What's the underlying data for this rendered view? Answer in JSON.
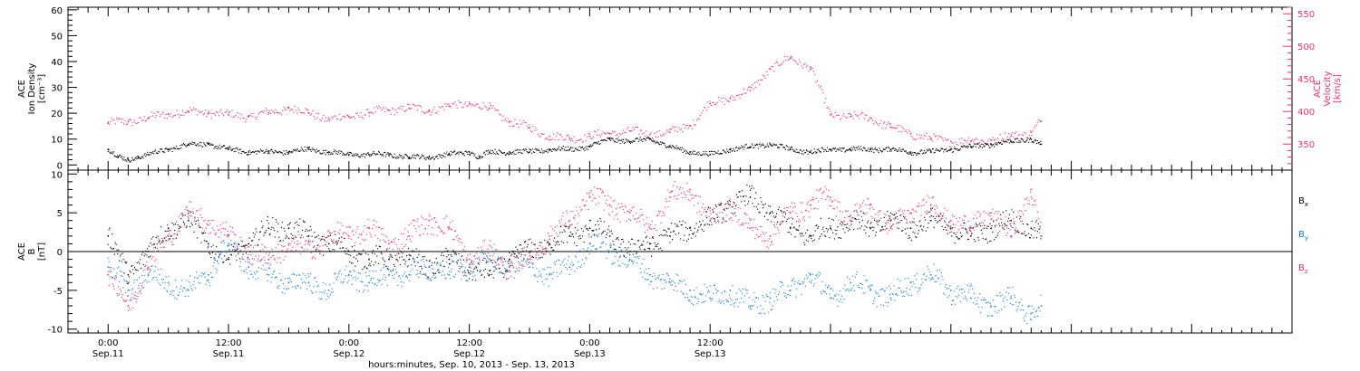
{
  "chart_data": [
    {
      "type": "scatter",
      "ylabel_lines": [
        "ACE",
        "Ion Density",
        "[cm⁻³]"
      ],
      "ylim": [
        -2,
        61
      ],
      "yticks": [
        0,
        10,
        20,
        30,
        40,
        50,
        60
      ],
      "ylabel_right_lines": [
        "ACE",
        "Velocity",
        "[km/s]"
      ],
      "ylim_right": [
        310,
        560
      ],
      "yticks_right": [
        350,
        400,
        450,
        500,
        550
      ],
      "colors": {
        "density": "#000000",
        "velocity": "#e8336b"
      },
      "series": [
        {
          "axis": "left",
          "x": [
            0,
            1,
            2,
            3,
            4,
            6,
            8,
            10,
            12,
            14,
            16,
            18,
            20,
            22,
            24,
            26,
            28,
            30,
            32,
            34,
            36,
            37,
            38,
            40,
            42,
            44,
            46,
            48,
            50,
            52,
            54,
            56,
            58,
            60,
            62,
            64,
            66,
            68,
            70,
            72,
            74,
            76,
            78,
            80,
            82,
            84,
            86,
            88,
            90,
            92,
            93
          ],
          "y": [
            6,
            3,
            2,
            3,
            4,
            6,
            8,
            8,
            6,
            5,
            5,
            5,
            6,
            5,
            4,
            4,
            4,
            3,
            3,
            4,
            5,
            3,
            5,
            5,
            5,
            6,
            6,
            7,
            10,
            9,
            10,
            7,
            5,
            4,
            6,
            7,
            8,
            6,
            5,
            6,
            6,
            6,
            6,
            5,
            5,
            6,
            7,
            8,
            9,
            10,
            8
          ]
        },
        {
          "axis": "right",
          "x": [
            0,
            2,
            4,
            6,
            8,
            10,
            12,
            14,
            16,
            18,
            20,
            22,
            24,
            26,
            28,
            30,
            32,
            34,
            36,
            38,
            40,
            42,
            44,
            46,
            48,
            50,
            52,
            54,
            56,
            58,
            60,
            62,
            64,
            66,
            68,
            70,
            72,
            74,
            76,
            78,
            80,
            82,
            84,
            86,
            88,
            90,
            92,
            93
          ],
          "y": [
            382,
            384,
            390,
            396,
            400,
            398,
            395,
            392,
            398,
            405,
            398,
            388,
            392,
            398,
            402,
            405,
            402,
            408,
            412,
            405,
            385,
            375,
            362,
            358,
            362,
            366,
            370,
            365,
            368,
            378,
            412,
            420,
            432,
            465,
            482,
            468,
            395,
            392,
            390,
            376,
            366,
            358,
            354,
            355,
            356,
            362,
            368,
            385
          ]
        }
      ]
    },
    {
      "type": "scatter",
      "ylabel_lines": [
        "ACE",
        "B",
        "[nT]"
      ],
      "ylim": [
        -10.5,
        10.5
      ],
      "yticks": [
        -10,
        -5,
        0,
        5,
        10
      ],
      "series": [
        {
          "name": "B",
          "sub": "x",
          "color": "#000000",
          "x": [
            0,
            2,
            4,
            6,
            8,
            10,
            12,
            14,
            16,
            18,
            20,
            22,
            24,
            26,
            28,
            30,
            32,
            34,
            36,
            38,
            40,
            42,
            44,
            46,
            48,
            50,
            52,
            54,
            56,
            58,
            60,
            62,
            64,
            66,
            68,
            70,
            72,
            74,
            76,
            78,
            80,
            82,
            84,
            86,
            88,
            90,
            92,
            93
          ],
          "y": [
            2,
            -3,
            0,
            3,
            4,
            1,
            -1,
            1,
            3,
            3,
            2,
            1,
            0,
            -1,
            -1,
            -1,
            -2,
            -1,
            -2,
            -3,
            -1,
            0,
            1,
            2,
            3,
            2,
            0,
            1,
            2,
            3,
            4,
            6,
            7,
            5,
            3,
            2,
            3,
            4,
            3,
            4,
            3,
            4,
            3,
            2,
            3,
            4,
            3,
            2
          ]
        },
        {
          "name": "B",
          "sub": "y",
          "color": "#1a7fd6",
          "x": [
            0,
            2,
            4,
            6,
            8,
            10,
            12,
            14,
            16,
            18,
            20,
            22,
            24,
            26,
            28,
            30,
            32,
            34,
            36,
            38,
            40,
            42,
            44,
            46,
            48,
            50,
            52,
            54,
            56,
            58,
            60,
            62,
            64,
            66,
            68,
            70,
            72,
            74,
            76,
            78,
            80,
            82,
            84,
            86,
            88,
            90,
            92,
            93
          ],
          "y": [
            -2,
            -5,
            -3,
            -4,
            -5,
            -3,
            1,
            -2,
            -3,
            -4,
            -4,
            -5,
            -3,
            -4,
            -3,
            -3,
            -2,
            -3,
            -2,
            -1,
            -2,
            -2,
            -3,
            -2,
            1,
            0,
            -1,
            -3,
            -4,
            -5,
            -6,
            -5,
            -7,
            -6,
            -5,
            -3,
            -6,
            -4,
            -5,
            -6,
            -4,
            -3,
            -5,
            -6,
            -7,
            -6,
            -8,
            -7
          ]
        },
        {
          "name": "B",
          "sub": "z",
          "color": "#e8336b",
          "x": [
            0,
            2,
            4,
            6,
            8,
            10,
            12,
            14,
            16,
            18,
            20,
            22,
            24,
            26,
            28,
            30,
            32,
            34,
            36,
            38,
            40,
            42,
            44,
            46,
            48,
            50,
            52,
            54,
            56,
            58,
            60,
            62,
            64,
            66,
            68,
            70,
            72,
            74,
            76,
            78,
            80,
            82,
            84,
            86,
            88,
            90,
            92,
            93
          ],
          "y": [
            -3,
            -7,
            -2,
            2,
            5,
            4,
            2,
            0,
            -1,
            1,
            0,
            2,
            2,
            3,
            1,
            2,
            4,
            3,
            -1,
            0,
            -2,
            -1,
            2,
            4,
            7,
            6,
            5,
            3,
            7,
            8,
            4,
            6,
            3,
            2,
            5,
            6,
            7,
            4,
            6,
            3,
            5,
            6,
            4,
            3,
            5,
            2,
            8,
            2
          ]
        }
      ],
      "legend": "right"
    }
  ],
  "x_axis": {
    "xlim_hours": [
      -4,
      118
    ],
    "ticks": [
      {
        "hour": 0,
        "time": "0:00",
        "date": "Sep.11"
      },
      {
        "hour": 12,
        "time": "12:00",
        "date": "Sep.11"
      },
      {
        "hour": 24,
        "time": "0:00",
        "date": "Sep.12"
      },
      {
        "hour": 36,
        "time": "12:00",
        "date": "Sep.12"
      },
      {
        "hour": 48,
        "time": "0:00",
        "date": "Sep.13"
      },
      {
        "hour": 60,
        "time": "12:00",
        "date": "Sep.13"
      }
    ],
    "title": "hours:minutes, Sep. 10, 2013 - Sep. 13, 2013"
  }
}
